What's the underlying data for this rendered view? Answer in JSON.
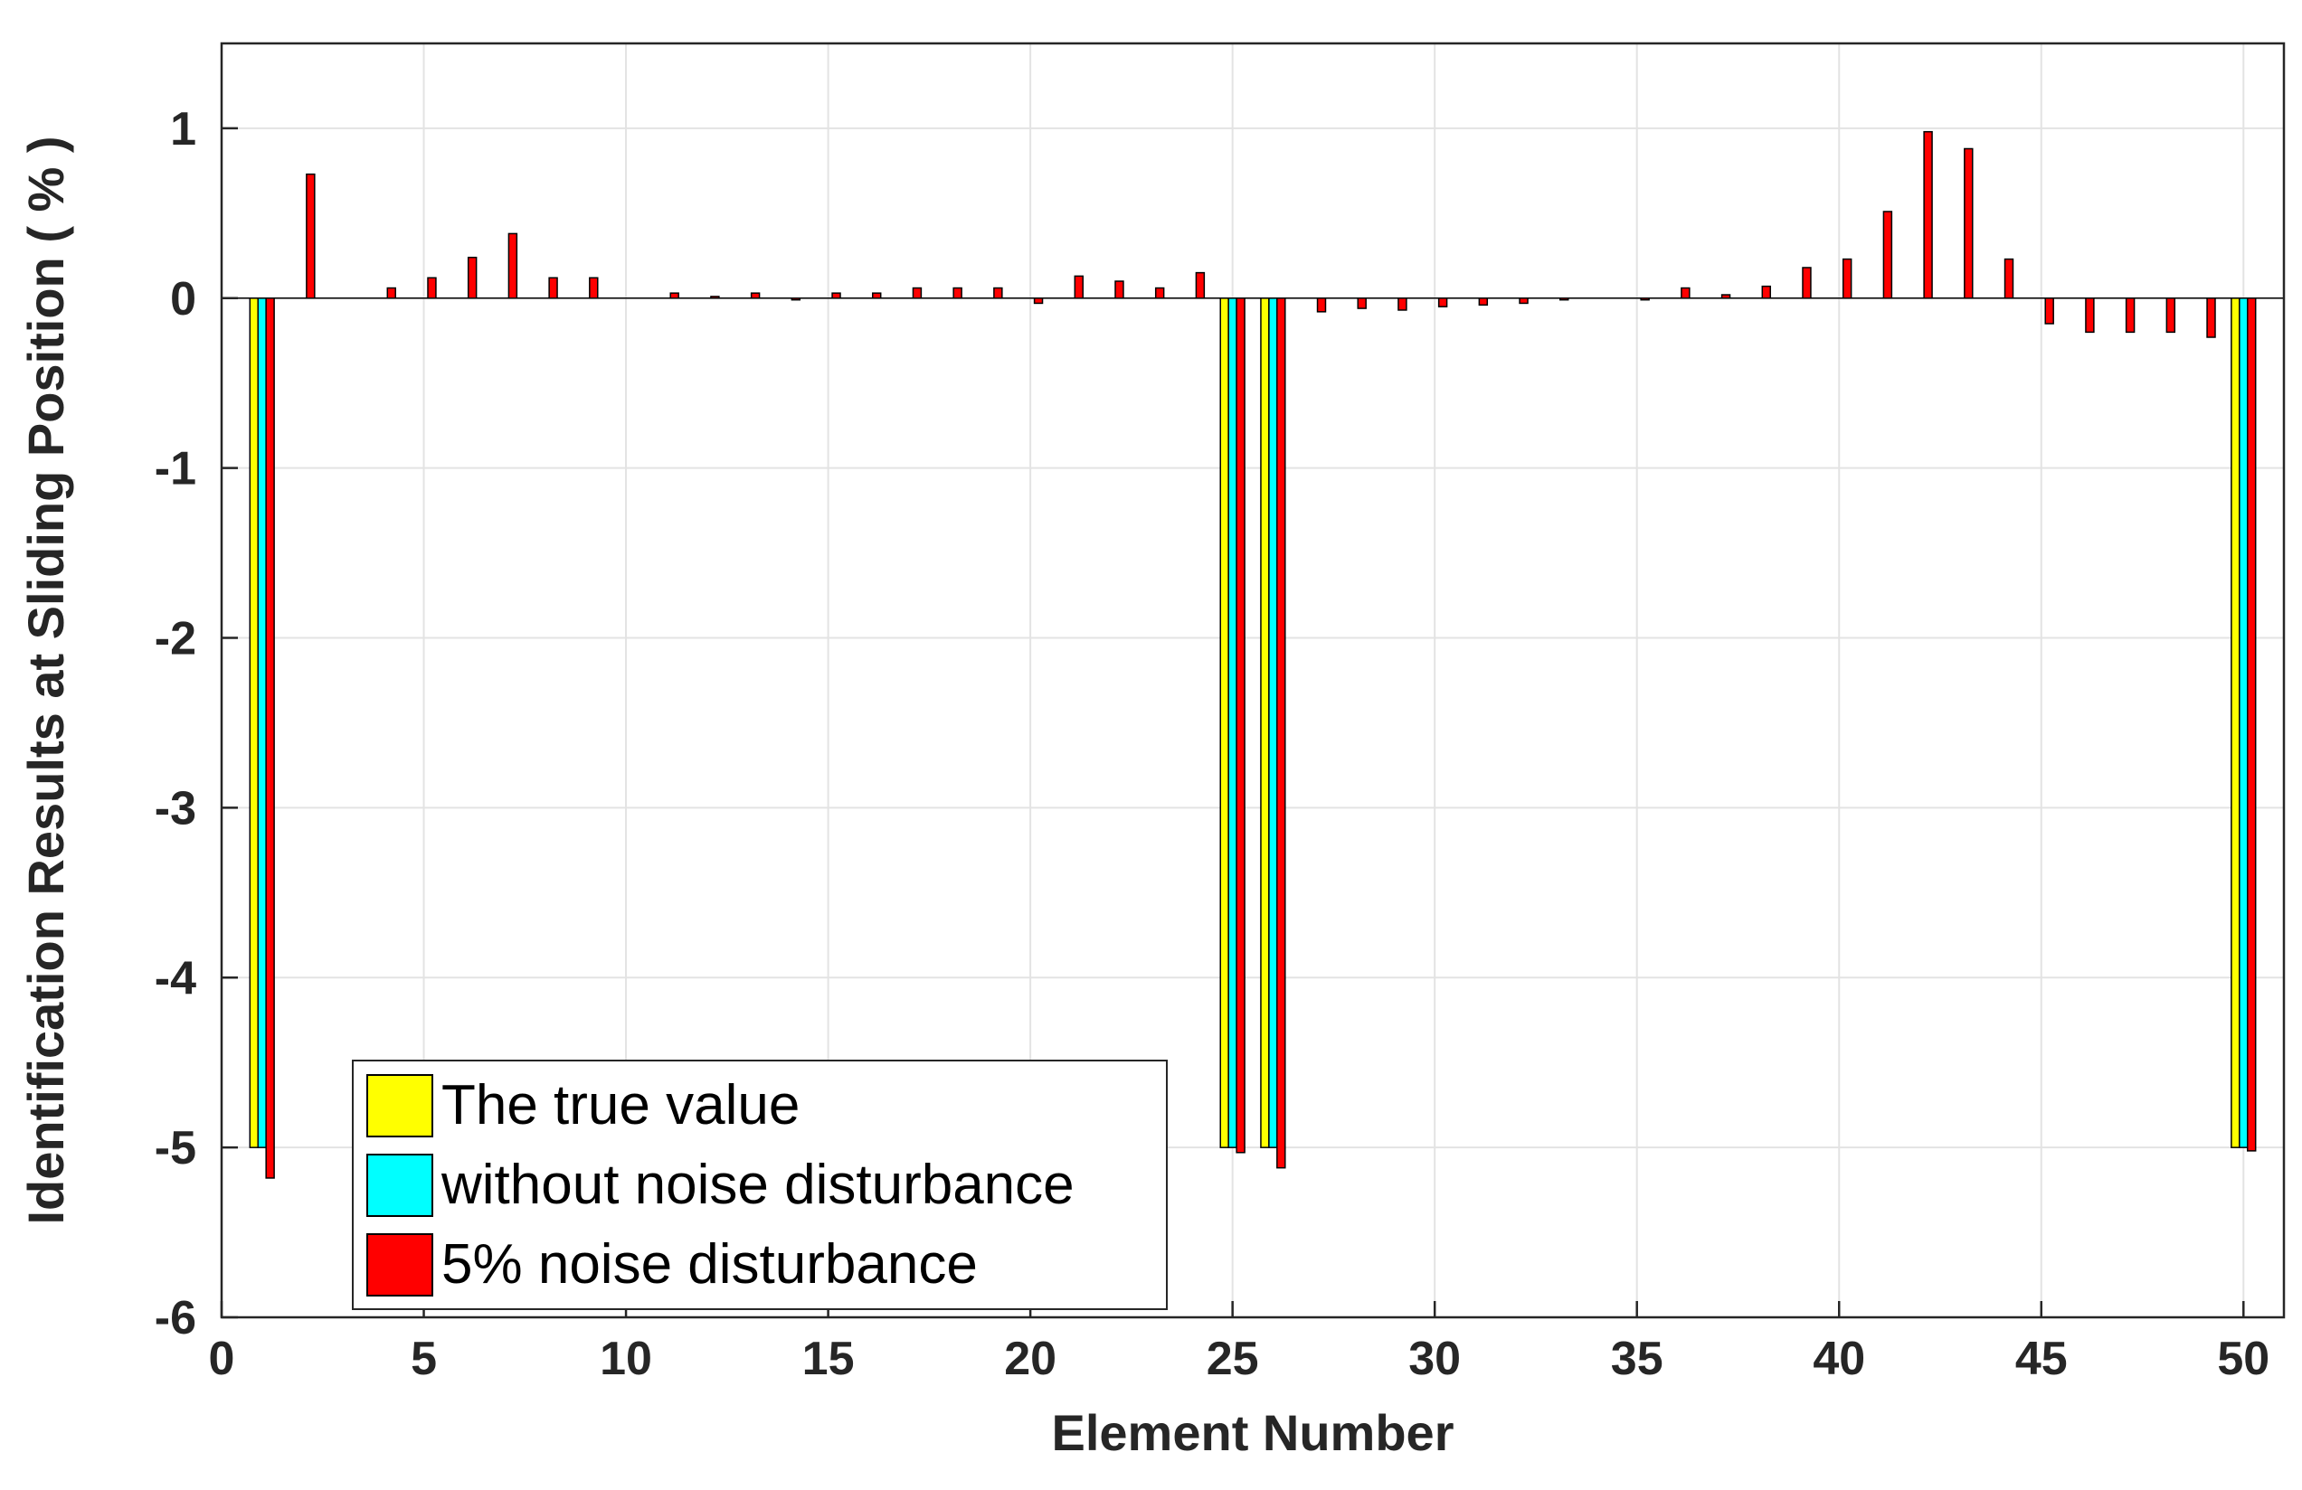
{
  "chart_data": {
    "type": "bar",
    "title": "",
    "xlabel": "Element Number",
    "ylabel": "Identification Results at Sliding Position ( % )",
    "xlim": [
      0,
      51
    ],
    "ylim": [
      -6,
      1.5
    ],
    "xticks": [
      0,
      5,
      10,
      15,
      20,
      25,
      30,
      35,
      40,
      45,
      50
    ],
    "yticks": [
      -6,
      -5,
      -4,
      -3,
      -2,
      -1,
      0,
      1
    ],
    "grid": true,
    "legend_position": "bottom-left",
    "x": [
      1,
      2,
      3,
      4,
      5,
      6,
      7,
      8,
      9,
      10,
      11,
      12,
      13,
      14,
      15,
      16,
      17,
      18,
      19,
      20,
      21,
      22,
      23,
      24,
      25,
      26,
      27,
      28,
      29,
      30,
      31,
      32,
      33,
      34,
      35,
      36,
      37,
      38,
      39,
      40,
      41,
      42,
      43,
      44,
      45,
      46,
      47,
      48,
      49,
      50
    ],
    "series": [
      {
        "name": "The true value",
        "color": "#ffff00",
        "values": [
          -5,
          0,
          0,
          0,
          0,
          0,
          0,
          0,
          0,
          0,
          0,
          0,
          0,
          0,
          0,
          0,
          0,
          0,
          0,
          0,
          0,
          0,
          0,
          0,
          -5,
          -5,
          0,
          0,
          0,
          0,
          0,
          0,
          0,
          0,
          0,
          0,
          0,
          0,
          0,
          0,
          0,
          0,
          0,
          0,
          0,
          0,
          0,
          0,
          0,
          -5
        ]
      },
      {
        "name": "without noise disturbance",
        "color": "#00ffff",
        "values": [
          -5,
          0,
          0,
          0,
          0,
          0,
          0,
          0,
          0,
          0,
          0,
          0,
          0,
          0,
          0,
          0,
          0,
          0,
          0,
          0,
          0,
          0,
          0,
          0,
          -5,
          -5,
          0,
          0,
          0,
          0,
          0,
          0,
          0,
          0,
          0,
          0,
          0,
          0,
          0,
          0,
          0,
          0,
          0,
          0,
          0,
          0,
          0,
          0,
          0,
          -5
        ]
      },
      {
        "name": "5% noise disturbance",
        "color": "#ff0000",
        "values": [
          -5.18,
          0.73,
          0,
          0.06,
          0.12,
          0.24,
          0.38,
          0.12,
          0.12,
          0,
          0.03,
          0.01,
          0.03,
          -0.01,
          0.03,
          0.03,
          0.06,
          0.06,
          0.06,
          -0.03,
          0.13,
          0.1,
          0.06,
          0.15,
          -5.03,
          -5.12,
          -0.08,
          -0.06,
          -0.07,
          -0.05,
          -0.04,
          -0.03,
          -0.01,
          0,
          -0.01,
          0.06,
          0.02,
          0.07,
          0.18,
          0.23,
          0.51,
          0.98,
          0.88,
          0.23,
          -0.15,
          -0.2,
          -0.2,
          -0.2,
          -0.23,
          -5.02
        ]
      }
    ]
  }
}
